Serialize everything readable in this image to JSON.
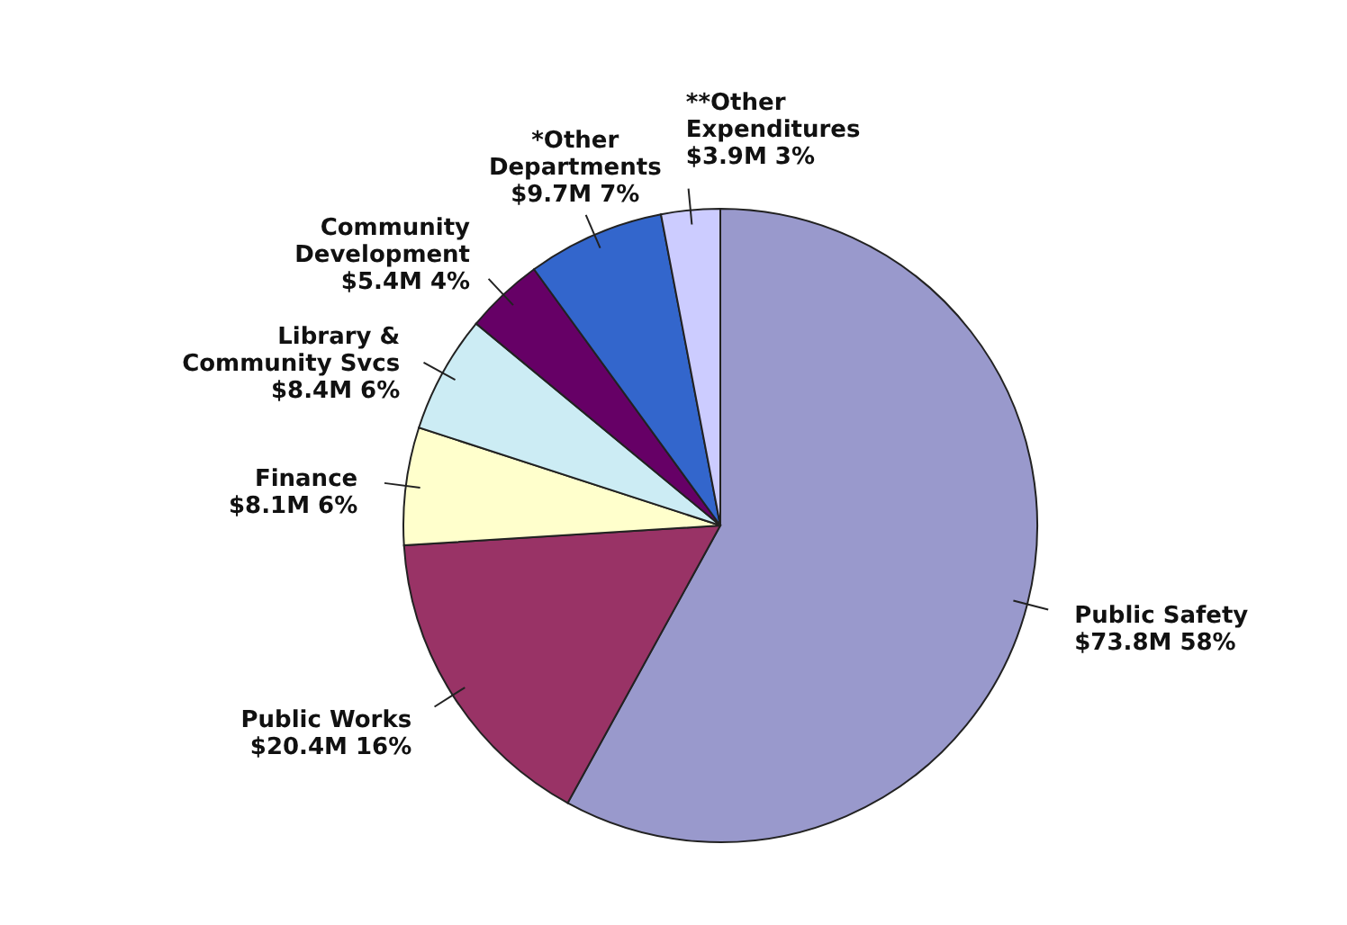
{
  "chart_data": {
    "type": "pie",
    "categories": [
      "Public Safety",
      "Public Works",
      "Finance",
      "Library & Community Svcs",
      "Community Development",
      "*Other Departments",
      "**Other Expenditures"
    ],
    "values": [
      58,
      16,
      6,
      6,
      4,
      7,
      3
    ],
    "value_labels": [
      "$73.8M  58%",
      "$20.4M 16%",
      "$8.1M  6%",
      "$8.4M 6%",
      "$5.4M  4%",
      "$9.7M 7%",
      "$3.9M  3%"
    ],
    "colors": [
      "#9999cc",
      "#993366",
      "#ffffcc",
      "#ccecf4",
      "#660066",
      "#3366cc",
      "#ccccff"
    ]
  }
}
